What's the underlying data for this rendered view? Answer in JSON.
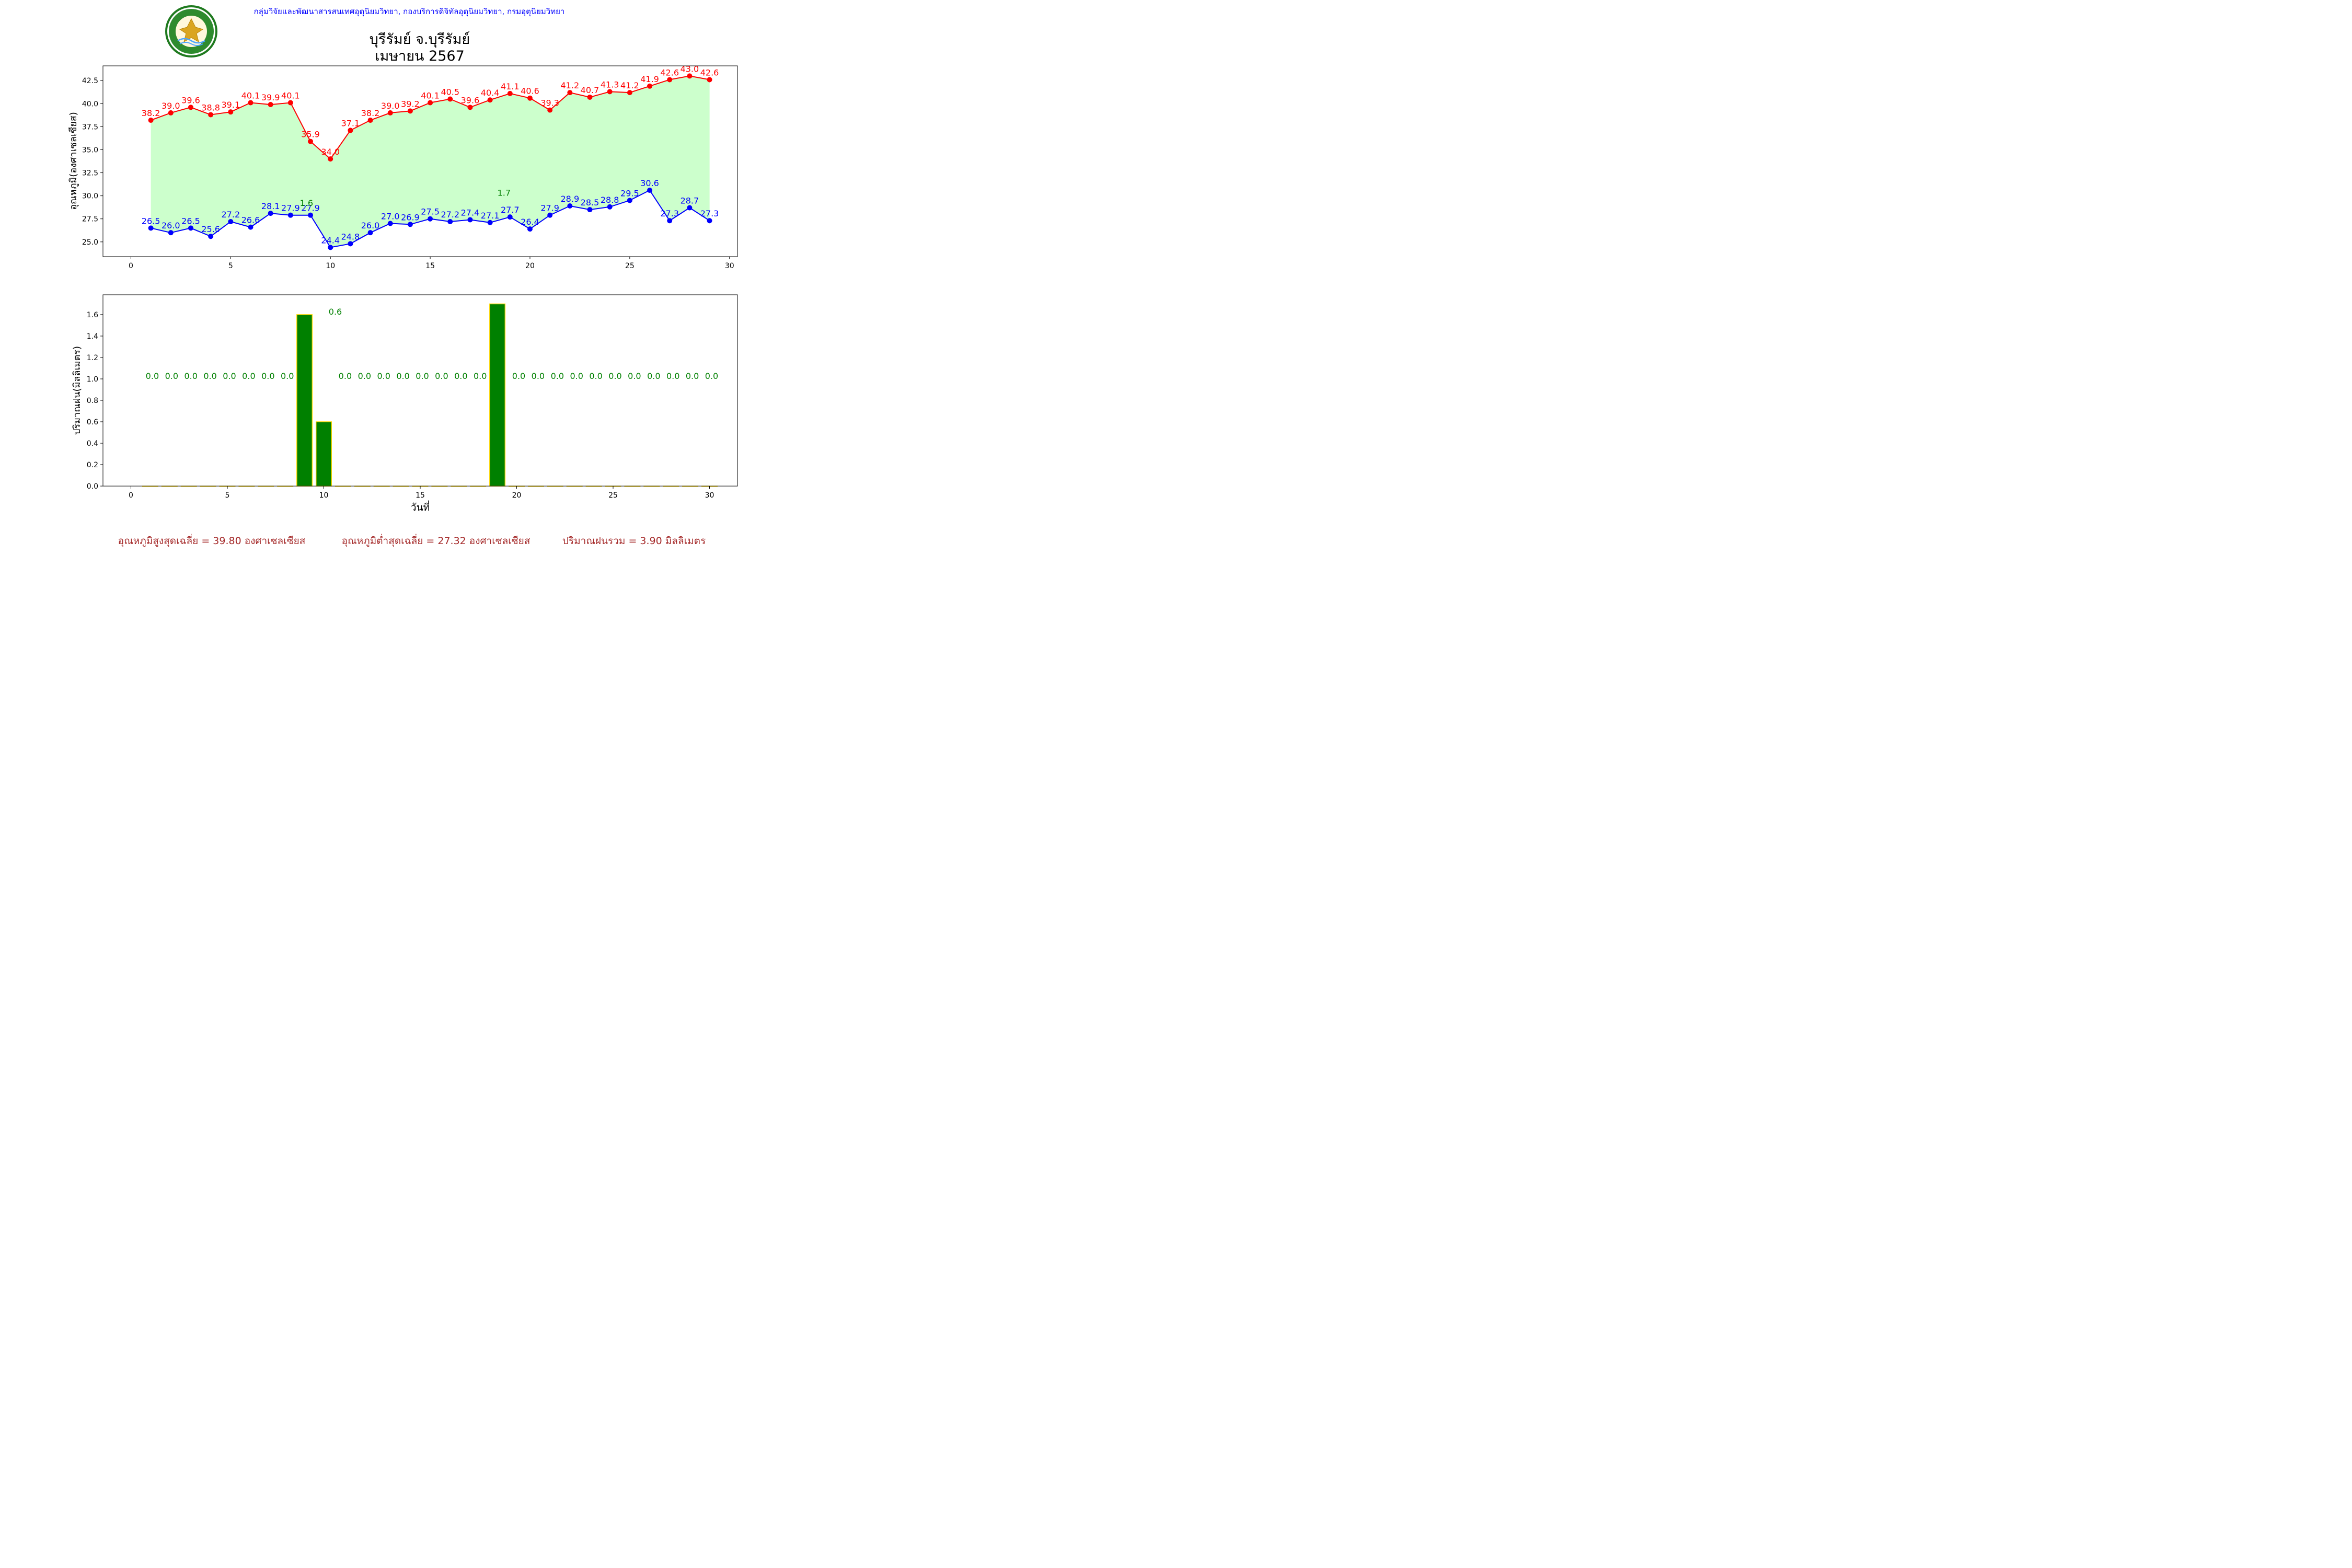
{
  "header": {
    "department_line": "กลุ่มวิจัยและพัฒนาสารสนเทศอุตุนิยมวิทยา, กองบริการดิจิทัลอุตุนิยมวิทยา, กรมอุตุนิยมวิทยา",
    "title_line1": "บุรีรัมย์ จ.บุรีรัมย์",
    "title_line2": "เมษายน 2567",
    "logo_top_text": "กรมอุตุนิยมวิทยา",
    "logo_bottom_text": "METEOROLOGICAL DEPARTMENT"
  },
  "colors": {
    "max_temp": "#ff0000",
    "min_temp": "#0000ff",
    "fill": "#ccffcc",
    "rain_bar": "#008000",
    "rain_bar_edge": "#ffd700",
    "rain_label": "#008000",
    "header_blue": "#0000ff",
    "footer": "#a52a2a"
  },
  "chart_data": [
    {
      "type": "line",
      "ylabel": "อุณหภูมิ(องศาเซลเซียส)",
      "xlim": [
        -1.4,
        30.4
      ],
      "ylim": [
        23.4,
        44.1
      ],
      "xticks": [
        0,
        5,
        10,
        15,
        20,
        25,
        30
      ],
      "yticks": [
        "25.0",
        "27.5",
        "30.0",
        "32.5",
        "35.0",
        "37.5",
        "40.0",
        "42.5"
      ],
      "x": [
        1,
        2,
        3,
        4,
        5,
        6,
        7,
        8,
        9,
        10,
        11,
        12,
        13,
        14,
        15,
        16,
        17,
        18,
        19,
        20,
        21,
        22,
        23,
        24,
        25,
        26,
        27,
        28,
        29
      ],
      "series": [
        {
          "values": [
            38.2,
            39.0,
            39.6,
            38.8,
            39.1,
            40.1,
            39.9,
            40.1,
            35.9,
            34.0,
            37.1,
            38.2,
            39.0,
            39.2,
            40.1,
            40.5,
            39.6,
            40.4,
            41.1,
            40.6,
            39.3,
            41.2,
            40.7,
            41.3,
            41.2,
            41.9,
            42.6,
            43.0,
            42.6
          ]
        },
        {
          "values": [
            26.5,
            26.0,
            26.5,
            25.6,
            27.2,
            26.6,
            28.1,
            27.9,
            27.9,
            24.4,
            24.8,
            26.0,
            27.0,
            26.9,
            27.5,
            27.2,
            27.4,
            27.1,
            27.7,
            26.4,
            27.9,
            28.9,
            28.5,
            28.8,
            29.5,
            30.6,
            27.3,
            28.7,
            27.3
          ]
        }
      ],
      "annotations": [
        {
          "text": "1.6",
          "x": 8.8,
          "y": 28.9
        },
        {
          "text": "1.7",
          "x": 18.7,
          "y": 30.0
        }
      ]
    },
    {
      "type": "bar",
      "xlabel": "วันที่",
      "ylabel": "ปริมาณฝน(มิลลิเมตร)",
      "xlim": [
        -1.45,
        31.45
      ],
      "ylim": [
        0,
        1.785
      ],
      "xticks": [
        0,
        5,
        10,
        15,
        20,
        25,
        30
      ],
      "yticks": [
        "0.0",
        "0.2",
        "0.4",
        "0.6",
        "0.8",
        "1.0",
        "1.2",
        "1.4",
        "1.6"
      ],
      "x": [
        1,
        2,
        3,
        4,
        5,
        6,
        7,
        8,
        9,
        10,
        11,
        12,
        13,
        14,
        15,
        16,
        17,
        18,
        19,
        20,
        21,
        22,
        23,
        24,
        25,
        26,
        27,
        28,
        29,
        30
      ],
      "values": [
        0,
        0,
        0,
        0,
        0,
        0,
        0,
        0,
        1.6,
        0.6,
        0,
        0,
        0,
        0,
        0,
        0,
        0,
        0,
        1.7,
        0,
        0,
        0,
        0,
        0,
        0,
        0,
        0,
        0,
        0,
        0
      ],
      "value_labels": [
        {
          "text": "0.0",
          "x": 1
        },
        {
          "text": "0.0",
          "x": 2
        },
        {
          "text": "0.0",
          "x": 3
        },
        {
          "text": "0.0",
          "x": 4
        },
        {
          "text": "0.0",
          "x": 5
        },
        {
          "text": "0.0",
          "x": 6
        },
        {
          "text": "0.0",
          "x": 7
        },
        {
          "text": "0.0",
          "x": 8
        },
        {
          "text": "0.6",
          "x": 10,
          "high": true
        },
        {
          "text": "0.0",
          "x": 11
        },
        {
          "text": "0.0",
          "x": 12
        },
        {
          "text": "0.0",
          "x": 13
        },
        {
          "text": "0.0",
          "x": 14
        },
        {
          "text": "0.0",
          "x": 15
        },
        {
          "text": "0.0",
          "x": 16
        },
        {
          "text": "0.0",
          "x": 17
        },
        {
          "text": "0.0",
          "x": 18
        },
        {
          "text": "0.0",
          "x": 20
        },
        {
          "text": "0.0",
          "x": 21
        },
        {
          "text": "0.0",
          "x": 22
        },
        {
          "text": "0.0",
          "x": 23
        },
        {
          "text": "0.0",
          "x": 24
        },
        {
          "text": "0.0",
          "x": 25
        },
        {
          "text": "0.0",
          "x": 26
        },
        {
          "text": "0.0",
          "x": 27
        },
        {
          "text": "0.0",
          "x": 28
        },
        {
          "text": "0.0",
          "x": 29
        },
        {
          "text": "0.0",
          "x": 30
        }
      ]
    }
  ],
  "footer": {
    "avg_max": "อุณหภูมิสูงสุดเฉลี่ย = 39.80 องศาเซลเซียส",
    "avg_min": "อุณหภูมิต่ำสุดเฉลี่ย = 27.32 องศาเซลเซียส",
    "total_rain": "ปริมาณฝนรวม = 3.90 มิลลิเมตร"
  }
}
